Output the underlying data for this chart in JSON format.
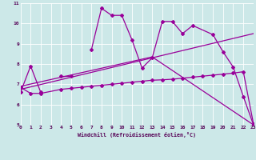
{
  "xlabel": "Windchill (Refroidissement éolien,°C)",
  "bg_color": "#cce8e8",
  "line_color": "#990099",
  "xmin": 0,
  "xmax": 23,
  "ymin": 5,
  "ymax": 11,
  "series1_x": [
    0,
    1,
    2,
    4,
    5,
    7,
    8,
    9,
    10,
    11,
    12,
    13,
    14,
    15,
    16,
    17,
    19,
    20,
    21,
    22,
    23
  ],
  "series1_y": [
    6.6,
    7.9,
    6.6,
    7.4,
    7.4,
    8.7,
    10.75,
    10.4,
    10.4,
    9.2,
    7.8,
    8.3,
    10.1,
    10.1,
    9.5,
    9.9,
    9.45,
    8.6,
    7.85,
    6.4,
    5.0
  ],
  "series1_breaks": [
    2,
    5
  ],
  "series2_x": [
    0,
    1,
    2,
    4,
    5,
    6,
    7,
    8,
    9,
    10,
    11,
    12,
    13,
    14,
    15,
    16,
    17,
    18,
    19,
    20,
    21,
    22,
    23
  ],
  "series2_y": [
    6.85,
    6.55,
    6.55,
    6.75,
    6.8,
    6.85,
    6.9,
    6.95,
    7.0,
    7.05,
    7.1,
    7.15,
    7.2,
    7.22,
    7.25,
    7.3,
    7.35,
    7.4,
    7.45,
    7.5,
    7.55,
    7.62,
    5.05
  ],
  "series3_x": [
    0,
    23
  ],
  "series3_y": [
    6.75,
    9.5
  ],
  "series4_x": [
    0,
    13,
    23
  ],
  "series4_y": [
    6.9,
    8.35,
    5.0
  ],
  "grid_color": "#ffffff",
  "tick_color": "#550055",
  "xlabel_color": "#550055",
  "marker": "D",
  "markersize": 2.0,
  "linewidth": 0.9
}
